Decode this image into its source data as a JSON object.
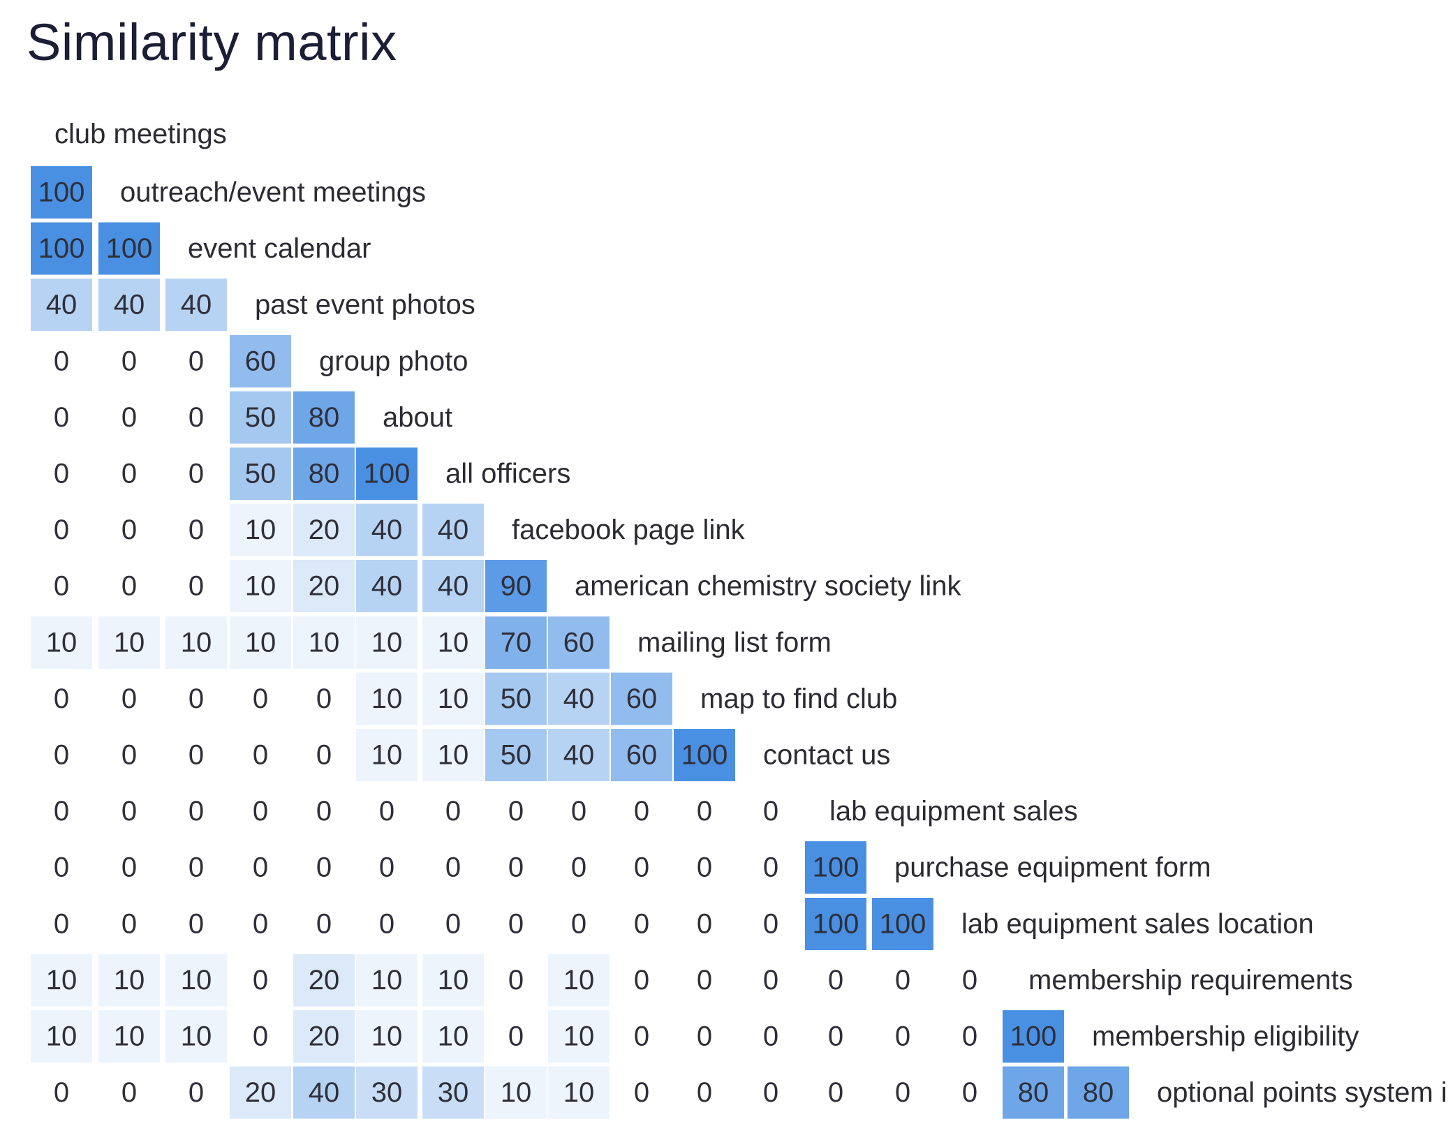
{
  "title": "Similarity matrix",
  "chart_data": {
    "type": "heatmap",
    "shape": "lower-triangular",
    "color_scale": {
      "low": "#ffffff",
      "high": "#4a90e2",
      "min": 0,
      "max": 100
    },
    "labels": [
      "club meetings",
      "outreach/event meetings",
      "event calendar",
      "past event photos",
      "group photo",
      "about",
      "all officers",
      "facebook page link",
      "american chemistry society link",
      "mailing list form",
      "map to find club",
      "contact us",
      "lab equipment sales",
      "purchase equipment form",
      "lab equipment sales location",
      "membership requirements",
      "membership eligibility",
      "optional points system i"
    ],
    "rows": [
      [],
      [
        100
      ],
      [
        100,
        100
      ],
      [
        40,
        40,
        40
      ],
      [
        0,
        0,
        0,
        60
      ],
      [
        0,
        0,
        0,
        50,
        80
      ],
      [
        0,
        0,
        0,
        50,
        80,
        100
      ],
      [
        0,
        0,
        0,
        10,
        20,
        40,
        40
      ],
      [
        0,
        0,
        0,
        10,
        20,
        40,
        40,
        90
      ],
      [
        10,
        10,
        10,
        10,
        10,
        10,
        10,
        70,
        60
      ],
      [
        0,
        0,
        0,
        0,
        0,
        10,
        10,
        50,
        40,
        60
      ],
      [
        0,
        0,
        0,
        0,
        0,
        10,
        10,
        50,
        40,
        60,
        100
      ],
      [
        0,
        0,
        0,
        0,
        0,
        0,
        0,
        0,
        0,
        0,
        0,
        0
      ],
      [
        0,
        0,
        0,
        0,
        0,
        0,
        0,
        0,
        0,
        0,
        0,
        0,
        100
      ],
      [
        0,
        0,
        0,
        0,
        0,
        0,
        0,
        0,
        0,
        0,
        0,
        0,
        100,
        100
      ],
      [
        10,
        10,
        10,
        0,
        20,
        10,
        10,
        0,
        10,
        0,
        0,
        0,
        0,
        0,
        0
      ],
      [
        10,
        10,
        10,
        0,
        20,
        10,
        10,
        0,
        10,
        0,
        0,
        0,
        0,
        0,
        0,
        100
      ],
      [
        0,
        0,
        0,
        20,
        40,
        30,
        30,
        10,
        10,
        0,
        0,
        0,
        0,
        0,
        0,
        80,
        80
      ]
    ]
  }
}
